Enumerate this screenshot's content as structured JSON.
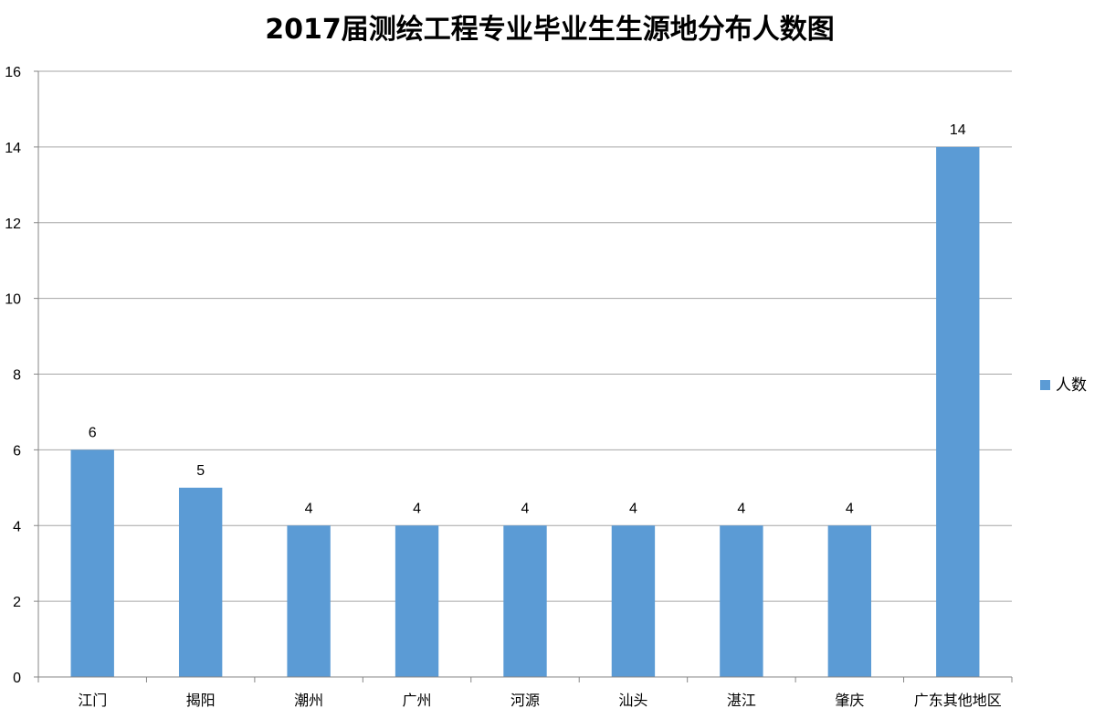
{
  "chart_data": {
    "type": "bar",
    "title": "2017届测绘工程专业毕业生生源地分布人数图",
    "categories": [
      "江门",
      "揭阳",
      "潮州",
      "广州",
      "河源",
      "汕头",
      "湛江",
      "肇庆",
      "广东其他地区"
    ],
    "series": [
      {
        "name": "人数",
        "values": [
          6,
          5,
          4,
          4,
          4,
          4,
          4,
          4,
          14
        ],
        "color": "#5b9bd5"
      }
    ],
    "ylim": [
      0,
      16
    ],
    "yticks": [
      0,
      2,
      4,
      6,
      8,
      10,
      12,
      14,
      16
    ],
    "grid": true,
    "data_labels": true,
    "legend_position": "right"
  }
}
